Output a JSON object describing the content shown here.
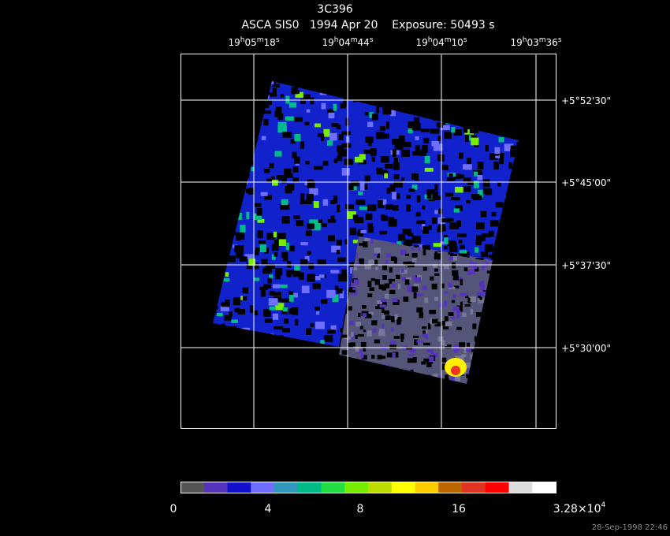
{
  "header": {
    "object": "3C396",
    "subtitle": "ASCA SIS0   1994 Apr 20    Exposure: 50493 s"
  },
  "ra_labels": [
    [
      "19",
      "h",
      "05",
      "m",
      "18",
      "s"
    ],
    [
      "19",
      "h",
      "04",
      "m",
      "44",
      "s"
    ],
    [
      "19",
      "h",
      "04",
      "m",
      "10",
      "s"
    ],
    [
      "19",
      "h",
      "03",
      "m",
      "36",
      "s"
    ]
  ],
  "dec_labels": [
    "+5°52'30\"",
    "+5°45'00\"",
    "+5°37'30\"",
    "+5°30'00\""
  ],
  "colorbar": {
    "colors": [
      "#555555",
      "#5533bb",
      "#1111cc",
      "#6f6fff",
      "#3399bb",
      "#00bb88",
      "#22dd44",
      "#77ee00",
      "#bbdd00",
      "#ffff00",
      "#ffcc00",
      "#bb6600",
      "#e03322",
      "#ff0000",
      "#dddddd",
      "#ffffff"
    ],
    "labels": [
      "0",
      "4",
      "8",
      "16"
    ],
    "max_label": [
      "3.28×10",
      "4"
    ]
  },
  "footer": "28-Sep-1998 22:46"
}
